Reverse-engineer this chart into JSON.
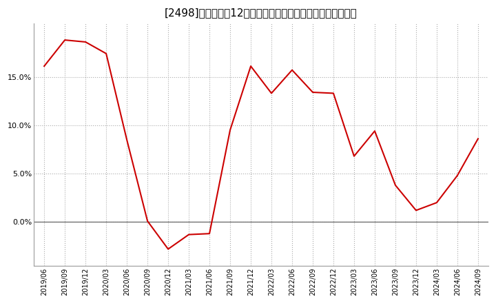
{
  "title": "[2498]　売上高の12か月移動合計の対前年同期増減率の推移",
  "line_color": "#cc0000",
  "bg_color": "#ffffff",
  "plot_bg_color": "#ffffff",
  "grid_color": "#aaaaaa",
  "dates": [
    "2019/06",
    "2019/09",
    "2019/12",
    "2020/03",
    "2020/06",
    "2020/09",
    "2020/12",
    "2021/03",
    "2021/06",
    "2021/09",
    "2021/12",
    "2022/03",
    "2022/06",
    "2022/09",
    "2022/12",
    "2023/03",
    "2023/06",
    "2023/09",
    "2023/12",
    "2024/03",
    "2024/06",
    "2024/09"
  ],
  "values": [
    0.161,
    0.188,
    0.186,
    0.174,
    0.085,
    0.001,
    -0.028,
    -0.013,
    -0.012,
    0.095,
    0.161,
    0.133,
    0.157,
    0.134,
    0.133,
    0.068,
    0.094,
    0.038,
    0.012,
    0.02,
    0.048,
    0.086
  ],
  "yticks": [
    0.0,
    0.05,
    0.1,
    0.15
  ],
  "ytick_labels": [
    "0.0%",
    "5.0%",
    "10.0%",
    "15.0%"
  ],
  "ylim": [
    -0.045,
    0.205
  ],
  "xlabel_rotation": 90,
  "title_fontsize": 11,
  "linewidth": 1.5
}
